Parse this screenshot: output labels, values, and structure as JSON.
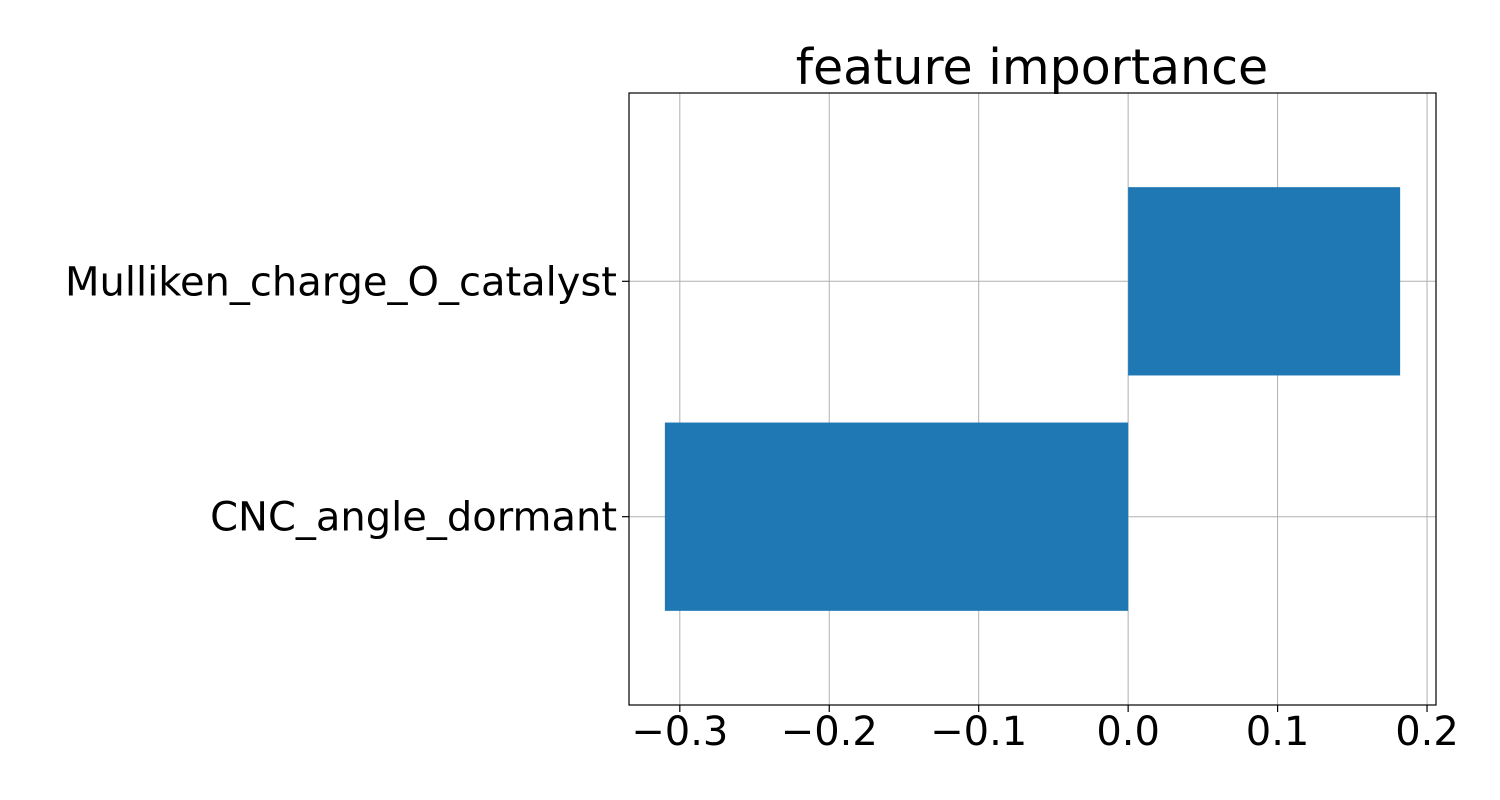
{
  "chart_data": {
    "type": "bar",
    "orientation": "horizontal",
    "title": "feature importance",
    "xlabel": "",
    "ylabel": "",
    "categories": [
      "CNC_angle_dormant",
      "Mulliken_charge_O_catalyst"
    ],
    "values": [
      -0.31,
      0.182
    ],
    "xlim": [
      -0.334,
      0.206
    ],
    "xticks": [
      -0.3,
      -0.2,
      -0.1,
      0.0,
      0.1,
      0.2
    ],
    "xtick_labels": [
      "−0.3",
      "−0.2",
      "−0.1",
      "0.0",
      "0.1",
      "0.2"
    ],
    "grid": true,
    "bar_color": "#1f77b4",
    "grid_color": "#b0b0b0"
  }
}
